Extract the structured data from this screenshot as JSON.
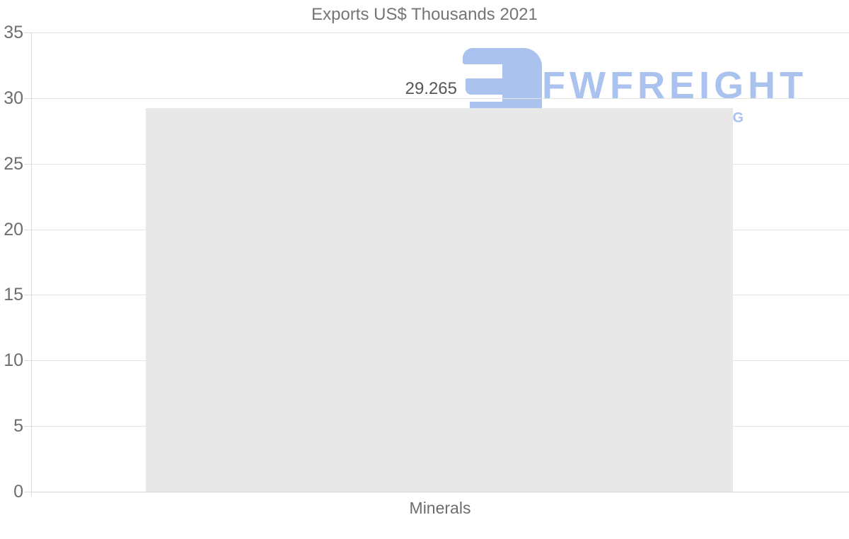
{
  "chart_data": {
    "type": "bar",
    "title": "Exports US$ Thousands 2021",
    "categories": [
      "Minerals"
    ],
    "values": [
      29.265
    ],
    "value_labels": [
      "29.265"
    ],
    "xlabel": "",
    "ylabel": "",
    "ylim": [
      0,
      35
    ],
    "yticks": [
      0,
      5,
      10,
      15,
      20,
      25,
      30,
      35
    ],
    "grid": "horizontal",
    "legend_position": "none",
    "bar_color": "#e8e8e8"
  },
  "watermark": {
    "brand": "FWFREIGHT",
    "tagline_visible_fragment": "G",
    "color": "#a9c3ee",
    "icon": "fwfreight-logo-icon"
  },
  "colors": {
    "background": "#ffffff",
    "title_text": "#757575",
    "tick_text": "#6d6d6d",
    "value_label_text": "#575757",
    "gridline": "#e4e4e4",
    "axis_line": "#dcdcdc"
  }
}
